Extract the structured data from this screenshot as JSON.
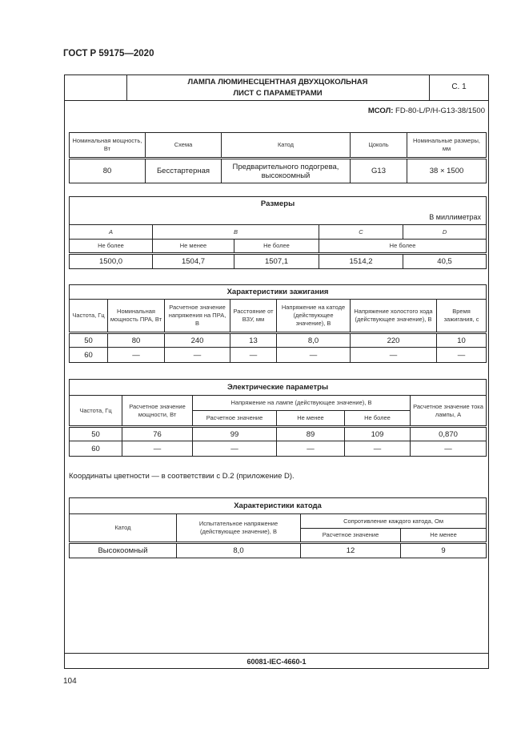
{
  "standard": "ГОСТ Р 59175—2020",
  "header": {
    "title_line1": "ЛАМПА ЛЮМИНЕСЦЕНТНАЯ ДВУХЦОКОЛЬНАЯ",
    "title_line2": "ЛИСТ С ПАРАМЕТРАМИ",
    "sheet": "С. 1"
  },
  "msol": {
    "label": "МСОЛ:",
    "value": "FD-80-L/P/H-G13-38/1500"
  },
  "general": {
    "headers": [
      "Номинальная мощность, Вт",
      "Схема",
      "Катод",
      "Цоколь",
      "Номинальные размеры, мм"
    ],
    "row": [
      "80",
      "Бесстартерная",
      "Предварительного подогрева, высокоомный",
      "G13",
      "38 × 1500"
    ]
  },
  "dimensions": {
    "title": "Размеры",
    "unit": "В миллиметрах",
    "letters": [
      "A",
      "B",
      "C",
      "D"
    ],
    "limits": [
      "Не более",
      "Не менее",
      "Не более",
      "Не более"
    ],
    "row": [
      "1500,0",
      "1504,7",
      "1507,1",
      "1514,2",
      "40,5"
    ]
  },
  "ignition": {
    "title": "Характеристики зажигания",
    "headers": [
      "Частота, Гц",
      "Номинальная мощность ПРА, Вт",
      "Расчетное значение напряжения на ПРА, В",
      "Расстояние от ВЗУ, мм",
      "Напряжение на катоде (действующее значение), В",
      "Напряжение холостого хода (действующее значение), В",
      "Время зажигания, с"
    ],
    "rows": [
      [
        "50",
        "80",
        "240",
        "13",
        "8,0",
        "220",
        "10"
      ],
      [
        "60",
        "—",
        "—",
        "—",
        "—",
        "—",
        "—"
      ]
    ]
  },
  "electrical": {
    "title": "Электрические параметры",
    "headers": [
      "Частота, Гц",
      "Расчетное значение мощности, Вт",
      "Напряжение на лампе (действующее значение), В",
      "Расчетное значение тока лампы, А"
    ],
    "subheaders": [
      "Расчетное значение",
      "Не менее",
      "Не более"
    ],
    "rows": [
      [
        "50",
        "76",
        "99",
        "89",
        "109",
        "0,870"
      ],
      [
        "60",
        "—",
        "—",
        "—",
        "—",
        "—"
      ]
    ]
  },
  "note": "Координаты цветности — в соответствии с D.2 (приложение D).",
  "cathode": {
    "title": "Характеристики катода",
    "headers": [
      "Катод",
      "Испытательное напряжение (действующее значение), В",
      "Сопротивление каждого катода, Ом"
    ],
    "subheaders": [
      "Расчетное значение",
      "Не менее"
    ],
    "row": [
      "Высокоомный",
      "8,0",
      "12",
      "9"
    ]
  },
  "footer": "60081-IEC-4660-1",
  "page_number": "104"
}
